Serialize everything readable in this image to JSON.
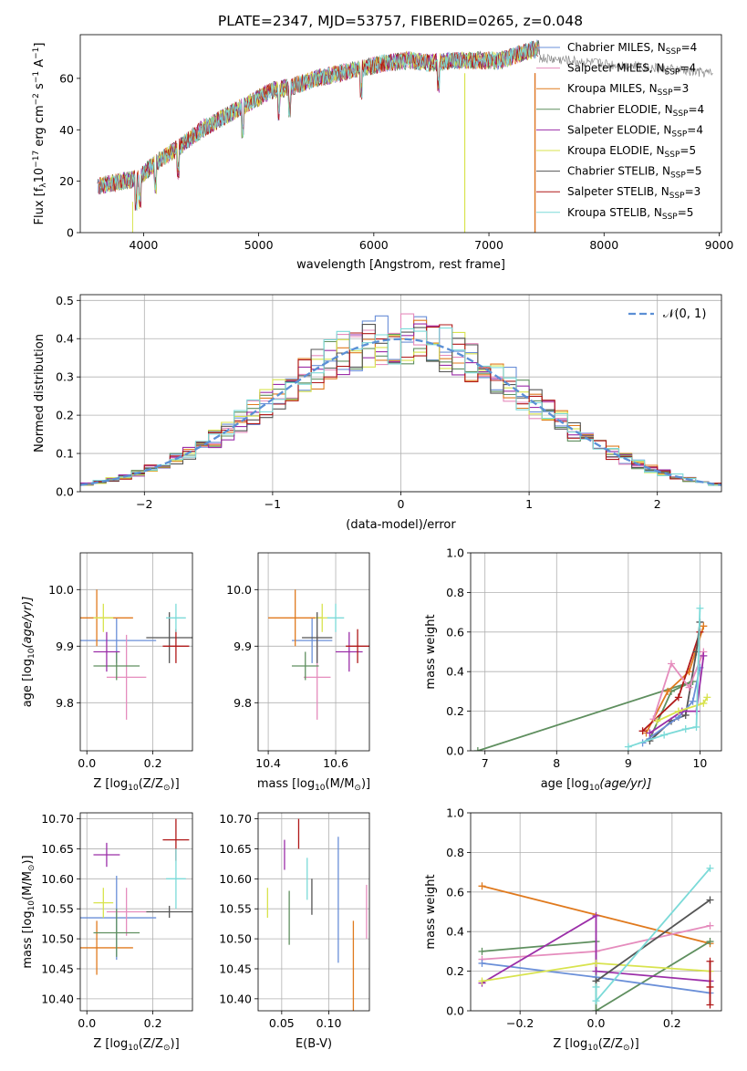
{
  "figure": {
    "title": "PLATE=2347, MJD=53757, FIBERID=0265, z=0.048"
  },
  "colors": {
    "Chabrier MILES": "#6a8fd8",
    "Salpeter MILES": "#e58cbd",
    "Kroupa MILES": "#e07a1e",
    "Chabrier ELODIE": "#5f8f5f",
    "Salpeter ELODIE": "#9b2ea8",
    "Kroupa ELODIE": "#d8e34e",
    "Chabrier STELIB": "#555555",
    "Salpeter STELIB": "#b01818",
    "Kroupa STELIB": "#7bdad8"
  },
  "legend_labels": [
    {
      "name": "Chabrier MILES",
      "pre": "Chabrier MILES, N",
      "sub": "SSP",
      "post": "=4"
    },
    {
      "name": "Salpeter MILES",
      "pre": "Salpeter MILES, N",
      "sub": "SSP",
      "post": "=4"
    },
    {
      "name": "Kroupa MILES",
      "pre": "Kroupa MILES, N",
      "sub": "SSP",
      "post": "=3"
    },
    {
      "name": "Chabrier ELODIE",
      "pre": "Chabrier ELODIE, N",
      "sub": "SSP",
      "post": "=4"
    },
    {
      "name": "Salpeter ELODIE",
      "pre": "Salpeter ELODIE, N",
      "sub": "SSP",
      "post": "=4"
    },
    {
      "name": "Kroupa ELODIE",
      "pre": "Kroupa ELODIE, N",
      "sub": "SSP",
      "post": "=5"
    },
    {
      "name": "Chabrier STELIB",
      "pre": "Chabrier STELIB, N",
      "sub": "SSP",
      "post": "=5"
    },
    {
      "name": "Salpeter STELIB",
      "pre": "Salpeter STELIB, N",
      "sub": "SSP",
      "post": "=3"
    },
    {
      "name": "Kroupa STELIB",
      "pre": "Kroupa STELIB, N",
      "sub": "SSP",
      "post": "=5"
    }
  ],
  "chart_data": [
    {
      "id": "spectrum",
      "type": "line",
      "xlabel": "wavelength [Angstrom, rest frame]",
      "ylabel": "Flux [f_λ 10^-17 erg cm^-2 s^-1 A^-1]",
      "xlim": [
        3450,
        9020
      ],
      "ylim": [
        0,
        77
      ],
      "xticks": [
        4000,
        5000,
        6000,
        7000,
        8000,
        9000
      ],
      "yticks": [
        0,
        20,
        40,
        60
      ],
      "grid": false,
      "legend": "right",
      "continuum": [
        [
          3600,
          18
        ],
        [
          3800,
          20
        ],
        [
          3950,
          21
        ],
        [
          4100,
          27
        ],
        [
          4300,
          33
        ],
        [
          4500,
          40
        ],
        [
          4700,
          45
        ],
        [
          4900,
          50
        ],
        [
          5100,
          55
        ],
        [
          5300,
          57
        ],
        [
          5500,
          60
        ],
        [
          5700,
          62
        ],
        [
          5900,
          64
        ],
        [
          6100,
          66
        ],
        [
          6300,
          67
        ],
        [
          6500,
          66
        ],
        [
          6700,
          67
        ],
        [
          6900,
          67
        ],
        [
          7100,
          67
        ],
        [
          7300,
          70
        ],
        [
          7450,
          72
        ]
      ],
      "absorption_lines": [
        3934,
        3968,
        4102,
        4300,
        4861,
        5175,
        5270,
        5890,
        6563
      ],
      "dropouts": [
        {
          "series": "Kroupa ELODIE",
          "x": 6790
        },
        {
          "series": "Salpeter STELIB",
          "x": 7400
        },
        {
          "series": "Kroupa MILES",
          "x": 7400
        }
      ]
    },
    {
      "id": "residuals",
      "type": "bar",
      "title": "",
      "xlabel": "(data-model)/error",
      "ylabel": "Normed distribution",
      "xlim": [
        -2.5,
        2.5
      ],
      "ylim": [
        0,
        0.515
      ],
      "xticks": [
        -2,
        -1,
        0,
        1,
        2
      ],
      "yticks": [
        0.0,
        0.1,
        0.2,
        0.3,
        0.4,
        0.5
      ],
      "grid": true,
      "bin_width": 0.1,
      "reference": {
        "name": "N(0,1)",
        "color": "#5b8fd5"
      },
      "legend": "top-right"
    },
    {
      "id": "age_vs_Z",
      "type": "scatter",
      "xlabel": "Z [log10(Z/Z_sun)]",
      "ylabel": "age [log10(age/yr)]",
      "xlim": [
        -0.02,
        0.32
      ],
      "ylim": [
        9.715,
        10.065
      ],
      "xticks": [
        0.0,
        0.2
      ],
      "yticks": [
        9.8,
        9.9,
        10.0
      ],
      "grid": true,
      "points": [
        {
          "series": "Chabrier MILES",
          "x": 0.09,
          "y": 9.91,
          "xerr": 0.12,
          "yerr": 0.04
        },
        {
          "series": "Salpeter MILES",
          "x": 0.12,
          "y": 9.845,
          "xerr": 0.06,
          "yerr": 0.075
        },
        {
          "series": "Kroupa MILES",
          "x": 0.03,
          "y": 9.95,
          "xerr": 0.11,
          "yerr": 0.05
        },
        {
          "series": "Chabrier ELODIE",
          "x": 0.09,
          "y": 9.865,
          "xerr": 0.07,
          "yerr": 0.025
        },
        {
          "series": "Salpeter ELODIE",
          "x": 0.06,
          "y": 9.89,
          "xerr": 0.04,
          "yerr": 0.035
        },
        {
          "series": "Kroupa ELODIE",
          "x": 0.05,
          "y": 9.95,
          "xerr": 0.03,
          "yerr": 0.025
        },
        {
          "series": "Chabrier STELIB",
          "x": 0.25,
          "y": 9.915,
          "xerr": 0.07,
          "yerr": 0.045
        },
        {
          "series": "Salpeter STELIB",
          "x": 0.27,
          "y": 9.9,
          "xerr": 0.04,
          "yerr": 0.03
        },
        {
          "series": "Kroupa STELIB",
          "x": 0.27,
          "y": 9.95,
          "xerr": 0.03,
          "yerr": 0.025
        }
      ]
    },
    {
      "id": "age_vs_mass",
      "type": "scatter",
      "xlabel": "mass [log10(M/M_sun)]",
      "ylabel": "",
      "xlim": [
        10.37,
        10.7
      ],
      "ylim": [
        9.715,
        10.065
      ],
      "xticks": [
        10.4,
        10.6
      ],
      "yticks": [
        9.8,
        9.9,
        10.0
      ],
      "grid": true,
      "points": [
        {
          "series": "Chabrier MILES",
          "x": 10.53,
          "y": 9.91,
          "xerr": 0.06,
          "yerr": 0.04
        },
        {
          "series": "Salpeter MILES",
          "x": 10.545,
          "y": 9.845,
          "xerr": 0.04,
          "yerr": 0.075
        },
        {
          "series": "Kroupa MILES",
          "x": 10.48,
          "y": 9.95,
          "xerr": 0.08,
          "yerr": 0.05
        },
        {
          "series": "Chabrier ELODIE",
          "x": 10.51,
          "y": 9.865,
          "xerr": 0.04,
          "yerr": 0.025
        },
        {
          "series": "Salpeter ELODIE",
          "x": 10.64,
          "y": 9.89,
          "xerr": 0.04,
          "yerr": 0.035
        },
        {
          "series": "Kroupa ELODIE",
          "x": 10.56,
          "y": 9.95,
          "xerr": 0.02,
          "yerr": 0.025
        },
        {
          "series": "Chabrier STELIB",
          "x": 10.545,
          "y": 9.915,
          "xerr": 0.045,
          "yerr": 0.045
        },
        {
          "series": "Salpeter STELIB",
          "x": 10.665,
          "y": 9.9,
          "xerr": 0.035,
          "yerr": 0.03
        },
        {
          "series": "Kroupa STELIB",
          "x": 10.6,
          "y": 9.95,
          "xerr": 0.025,
          "yerr": 0.025
        }
      ]
    },
    {
      "id": "weight_vs_age",
      "type": "line",
      "xlabel": "age [log10(age/yr)]",
      "ylabel": "mass weight",
      "xlim": [
        6.8,
        10.3
      ],
      "ylim": [
        0,
        1.0
      ],
      "xticks": [
        7,
        8,
        9,
        10
      ],
      "yticks": [
        0.0,
        0.2,
        0.4,
        0.6,
        0.8,
        1.0
      ],
      "grid": true,
      "series": [
        {
          "name": "Chabrier ELODIE",
          "points": [
            [
              6.9,
              0.0
            ],
            [
              9.9,
              0.35
            ],
            [
              9.6,
              0.3
            ],
            [
              9.3,
              0.06
            ]
          ]
        },
        {
          "name": "Kroupa MILES",
          "points": [
            [
              9.25,
              0.09
            ],
            [
              9.55,
              0.3
            ],
            [
              9.85,
              0.4
            ],
            [
              10.05,
              0.63
            ]
          ]
        },
        {
          "name": "Salpeter STELIB",
          "points": [
            [
              9.2,
              0.1
            ],
            [
              9.7,
              0.27
            ],
            [
              10.0,
              0.6
            ]
          ]
        },
        {
          "name": "Chabrier STELIB",
          "points": [
            [
              9.3,
              0.05
            ],
            [
              9.6,
              0.15
            ],
            [
              9.8,
              0.18
            ],
            [
              9.95,
              0.5
            ],
            [
              10.0,
              0.65
            ]
          ]
        },
        {
          "name": "Chabrier MILES",
          "points": [
            [
              9.2,
              0.04
            ],
            [
              9.7,
              0.17
            ],
            [
              9.9,
              0.25
            ],
            [
              10.0,
              0.42
            ]
          ]
        },
        {
          "name": "Salpeter MILES",
          "points": [
            [
              9.35,
              0.16
            ],
            [
              9.6,
              0.44
            ],
            [
              9.85,
              0.32
            ],
            [
              10.05,
              0.5
            ]
          ]
        },
        {
          "name": "Salpeter ELODIE",
          "points": [
            [
              9.3,
              0.09
            ],
            [
              9.75,
              0.2
            ],
            [
              9.95,
              0.2
            ],
            [
              10.05,
              0.48
            ]
          ]
        },
        {
          "name": "Kroupa ELODIE",
          "points": [
            [
              9.4,
              0.15
            ],
            [
              9.7,
              0.2
            ],
            [
              10.05,
              0.24
            ],
            [
              10.1,
              0.27
            ]
          ]
        },
        {
          "name": "Kroupa STELIB",
          "points": [
            [
              9.0,
              0.02
            ],
            [
              9.5,
              0.08
            ],
            [
              9.8,
              0.11
            ],
            [
              9.95,
              0.12
            ],
            [
              10.0,
              0.72
            ]
          ]
        }
      ]
    },
    {
      "id": "mass_vs_Z",
      "type": "scatter",
      "xlabel": "Z [log10(Z/Z_sun)]",
      "ylabel": "mass [log10(M/M_sun)]",
      "xlim": [
        -0.02,
        0.32
      ],
      "ylim": [
        10.38,
        10.71
      ],
      "xticks": [
        0.0,
        0.2
      ],
      "yticks": [
        10.4,
        10.45,
        10.5,
        10.55,
        10.6,
        10.65,
        10.7
      ],
      "grid": true,
      "points": [
        {
          "series": "Chabrier MILES",
          "x": 0.09,
          "y": 10.535,
          "xerr": 0.12,
          "yerr": 0.07
        },
        {
          "series": "Salpeter MILES",
          "x": 0.12,
          "y": 10.545,
          "xerr": 0.06,
          "yerr": 0.04
        },
        {
          "series": "Kroupa MILES",
          "x": 0.03,
          "y": 10.485,
          "xerr": 0.11,
          "yerr": 0.045
        },
        {
          "series": "Chabrier ELODIE",
          "x": 0.09,
          "y": 10.51,
          "xerr": 0.07,
          "yerr": 0.04
        },
        {
          "series": "Salpeter ELODIE",
          "x": 0.06,
          "y": 10.64,
          "xerr": 0.04,
          "yerr": 0.02
        },
        {
          "series": "Kroupa ELODIE",
          "x": 0.05,
          "y": 10.56,
          "xerr": 0.03,
          "yerr": 0.025
        },
        {
          "series": "Chabrier STELIB",
          "x": 0.25,
          "y": 10.545,
          "xerr": 0.07,
          "yerr": 0.01
        },
        {
          "series": "Salpeter STELIB",
          "x": 0.27,
          "y": 10.665,
          "xerr": 0.04,
          "yerr": 0.035
        },
        {
          "series": "Kroupa STELIB",
          "x": 0.27,
          "y": 10.6,
          "xerr": 0.03,
          "yerr": 0.05
        }
      ]
    },
    {
      "id": "mass_vs_ebv",
      "type": "scatter",
      "xlabel": "E(B-V)",
      "ylabel": "",
      "xlim": [
        0.025,
        0.143
      ],
      "ylim": [
        10.38,
        10.71
      ],
      "xticks": [
        0.05,
        0.1
      ],
      "yticks": [
        10.4,
        10.45,
        10.5,
        10.55,
        10.6,
        10.65,
        10.7
      ],
      "grid": true,
      "points": [
        {
          "series": "Kroupa ELODIE",
          "x": 0.035,
          "y": 10.56,
          "yerr": 0.025
        },
        {
          "series": "Salpeter ELODIE",
          "x": 0.053,
          "y": 10.64,
          "yerr": 0.025
        },
        {
          "series": "Chabrier ELODIE",
          "x": 0.058,
          "y": 10.535,
          "yerr": 0.045
        },
        {
          "series": "Salpeter STELIB",
          "x": 0.068,
          "y": 10.675,
          "yerr": 0.025
        },
        {
          "series": "Kroupa STELIB",
          "x": 0.077,
          "y": 10.6,
          "yerr": 0.035
        },
        {
          "series": "Chabrier STELIB",
          "x": 0.082,
          "y": 10.57,
          "yerr": 0.03
        },
        {
          "series": "Chabrier MILES",
          "x": 0.11,
          "y": 10.565,
          "yerr": 0.105
        },
        {
          "series": "Kroupa MILES",
          "x": 0.126,
          "y": 10.45,
          "yerr": 0.08
        },
        {
          "series": "Salpeter MILES",
          "x": 0.14,
          "y": 10.545,
          "yerr": 0.045
        }
      ]
    },
    {
      "id": "weight_vs_Z",
      "type": "line",
      "xlabel": "Z [log10(Z/Z_sun)]",
      "ylabel": "mass weight",
      "xlim": [
        -0.33,
        0.33
      ],
      "ylim": [
        0,
        1.0
      ],
      "xticks": [
        -0.2,
        0.0,
        0.2
      ],
      "yticks": [
        0.0,
        0.2,
        0.4,
        0.6,
        0.8,
        1.0
      ],
      "grid": true,
      "series": [
        {
          "name": "Kroupa MILES",
          "points": [
            [
              -0.3,
              0.63
            ],
            [
              0.3,
              0.34
            ]
          ]
        },
        {
          "name": "Chabrier ELODIE",
          "points": [
            [
              -0.3,
              0.3
            ],
            [
              0.0,
              0.35
            ],
            [
              0.0,
              0.0
            ],
            [
              0.3,
              0.35
            ]
          ]
        },
        {
          "name": "Salpeter MILES",
          "points": [
            [
              -0.3,
              0.26
            ],
            [
              0.0,
              0.3
            ],
            [
              0.3,
              0.43
            ]
          ]
        },
        {
          "name": "Chabrier MILES",
          "points": [
            [
              -0.3,
              0.24
            ],
            [
              0.0,
              0.17
            ],
            [
              0.3,
              0.09
            ]
          ]
        },
        {
          "name": "Salpeter ELODIE",
          "points": [
            [
              -0.3,
              0.14
            ],
            [
              0.0,
              0.48
            ],
            [
              0.0,
              0.2
            ],
            [
              0.3,
              0.15
            ]
          ]
        },
        {
          "name": "Kroupa ELODIE",
          "points": [
            [
              -0.3,
              0.15
            ],
            [
              0.0,
              0.24
            ],
            [
              0.3,
              0.2
            ]
          ]
        },
        {
          "name": "Chabrier STELIB",
          "points": [
            [
              0.0,
              0.15
            ],
            [
              0.3,
              0.56
            ]
          ]
        },
        {
          "name": "Kroupa STELIB",
          "points": [
            [
              0.0,
              0.12
            ],
            [
              0.0,
              0.05
            ],
            [
              0.3,
              0.72
            ]
          ]
        },
        {
          "name": "Salpeter STELIB",
          "points": [
            [
              0.3,
              0.12
            ],
            [
              0.3,
              0.03
            ],
            [
              0.3,
              0.25
            ]
          ]
        }
      ]
    }
  ]
}
